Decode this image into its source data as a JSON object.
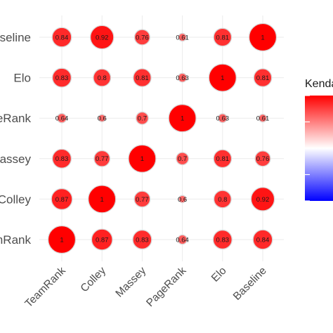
{
  "chart_data": {
    "type": "heatmap",
    "title": "",
    "xlabel": "",
    "ylabel": "",
    "x_categories": [
      "TeamRank",
      "Colley",
      "Massey",
      "PageRank",
      "Elo",
      "Baseline"
    ],
    "y_categories": [
      "Baseline",
      "Elo",
      "PageRank",
      "Massey",
      "Colley",
      "TeamRank"
    ],
    "y_tick_labels": [
      "Baseline",
      "Elo",
      "PageRank",
      "Massey",
      "Colley",
      "TeamRank"
    ],
    "values": [
      [
        0.84,
        0.92,
        0.76,
        0.61,
        0.81,
        1
      ],
      [
        0.83,
        0.8,
        0.81,
        0.63,
        1,
        0.81
      ],
      [
        0.64,
        0.6,
        0.7,
        1,
        0.63,
        0.61
      ],
      [
        0.83,
        0.77,
        1,
        0.7,
        0.81,
        0.76
      ],
      [
        0.87,
        1,
        0.77,
        0.6,
        0.8,
        0.92
      ],
      [
        1,
        0.87,
        0.83,
        0.64,
        0.83,
        0.84
      ]
    ],
    "value_labels": [
      [
        "0.84",
        "0.92",
        "0.76",
        "0.61",
        "0.81",
        "1"
      ],
      [
        "0.83",
        "0.8",
        "0.81",
        "0.63",
        "1",
        "0.81"
      ],
      [
        "0.64",
        "0.6",
        "0.7",
        "1",
        "0.63",
        "0.61"
      ],
      [
        "0.83",
        "0.77",
        "1",
        "0.7",
        "0.81",
        "0.76"
      ],
      [
        "0.87",
        "1",
        "0.77",
        "0.6",
        "0.8",
        "0.92"
      ],
      [
        "1",
        "0.87",
        "0.83",
        "0.64",
        "0.83",
        "0.84"
      ]
    ],
    "legend": {
      "title": "Kendall",
      "placement": "right",
      "range": [
        -1,
        1
      ],
      "colors": {
        "low": "#0000ff",
        "mid": "#ffffff",
        "high": "#ff0000"
      }
    },
    "grid": true,
    "colors": {
      "circle_stroke": "#d9d9d9",
      "grid": "#ebebeb",
      "tick_text": "#4d4d4d"
    }
  }
}
